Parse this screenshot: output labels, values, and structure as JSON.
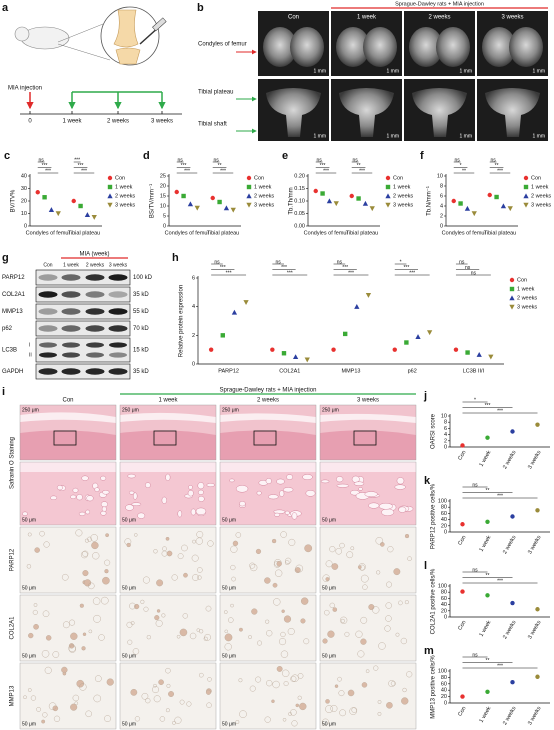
{
  "timeline": {
    "panel": "a",
    "event": "MIA injection",
    "ticks": [
      "0",
      "1 week",
      "2 weeks",
      "3 weeks"
    ]
  },
  "micro_ct": {
    "panel": "b",
    "columns": [
      "Con",
      "1 week",
      "2 weeks",
      "3 weeks"
    ],
    "treatment": "Sprague-Dawley rats + MIA injection",
    "rows": [
      "Condyles of femur",
      "Tibial plateau",
      "Tibial shaft"
    ],
    "scale": "1 mm"
  },
  "western_blot": {
    "panel": "g",
    "treatment": "MIA (week)",
    "lanes": [
      "Con",
      "1 week",
      "2 weeks",
      "3 weeks"
    ],
    "rows": [
      {
        "protein": "PARP12",
        "size": "100 kD"
      },
      {
        "protein": "COL2A1",
        "size": "35 kD"
      },
      {
        "protein": "MMP13",
        "size": "55 kD"
      },
      {
        "protein": "p62",
        "size": "70 kD"
      },
      {
        "protein": "LC3B",
        "size": "15 kD",
        "isoforms": [
          "I",
          "II"
        ]
      },
      {
        "protein": "GAPDH",
        "size": "35 kD"
      }
    ]
  },
  "histology": {
    "panel": "i",
    "columns": [
      "Con",
      "1 week",
      "2 weeks",
      "3 weeks"
    ],
    "treatment": "Sprague-Dawley rats + MIA injection",
    "rows": [
      "Safranin O Staining",
      "PARP12",
      "COL2A1",
      "MMP13"
    ],
    "scale_low": "250 μm",
    "scale_high": "50 μm"
  },
  "chart_data": [
    {
      "type": "dot",
      "panel": "c",
      "y_label": "BV/TV%",
      "categories": [
        "Condyles of femur",
        "Tibial plateau"
      ],
      "series": [
        {
          "name": "Con",
          "color": "#e8312f",
          "marker": "circle",
          "values": [
            27,
            20
          ]
        },
        {
          "name": "1 week",
          "color": "#3aaa35",
          "marker": "square",
          "values": [
            23,
            16
          ]
        },
        {
          "name": "2 weeks",
          "color": "#2b3fa0",
          "marker": "triangle",
          "values": [
            13,
            9
          ]
        },
        {
          "name": "3 weeks",
          "color": "#9a8b3a",
          "marker": "triangle-down",
          "values": [
            10,
            7
          ]
        }
      ],
      "ylim": [
        0,
        40
      ],
      "yticks": [
        0,
        10,
        20,
        30,
        40
      ],
      "legend": "right",
      "annotations": [
        "ns",
        "***",
        "***",
        "***",
        "***",
        "***"
      ]
    },
    {
      "type": "dot",
      "panel": "d",
      "y_label": "BS/TV/mm⁻¹",
      "categories": [
        "Condyles of femur",
        "Tibial plateau"
      ],
      "series": [
        {
          "name": "Con",
          "color": "#e8312f",
          "marker": "circle",
          "values": [
            17,
            14
          ]
        },
        {
          "name": "1 week",
          "color": "#3aaa35",
          "marker": "square",
          "values": [
            15,
            12
          ]
        },
        {
          "name": "2 weeks",
          "color": "#2b3fa0",
          "marker": "triangle",
          "values": [
            11,
            9
          ]
        },
        {
          "name": "3 weeks",
          "color": "#9a8b3a",
          "marker": "triangle-down",
          "values": [
            9,
            8
          ]
        }
      ],
      "ylim": [
        0,
        25
      ],
      "yticks": [
        0,
        5,
        10,
        15,
        20,
        25
      ],
      "legend": "right",
      "annotations": [
        "ns",
        "***",
        "***",
        "ns",
        "**",
        "***"
      ]
    },
    {
      "type": "dot",
      "panel": "e",
      "y_label": "Tb.Th/mm",
      "categories": [
        "Condyles of femur",
        "Tibial plateau"
      ],
      "series": [
        {
          "name": "Con",
          "color": "#e8312f",
          "marker": "circle",
          "values": [
            0.14,
            0.12
          ]
        },
        {
          "name": "1 week",
          "color": "#3aaa35",
          "marker": "square",
          "values": [
            0.13,
            0.11
          ]
        },
        {
          "name": "2 weeks",
          "color": "#2b3fa0",
          "marker": "triangle",
          "values": [
            0.1,
            0.09
          ]
        },
        {
          "name": "3 weeks",
          "color": "#9a8b3a",
          "marker": "triangle-down",
          "values": [
            0.09,
            0.07
          ]
        }
      ],
      "ylim": [
        0,
        0.2
      ],
      "yticks": [
        {
          "value": 0,
          "label": "0.00"
        },
        0.05,
        {
          "value": 0.1,
          "label": "0.10"
        },
        0.15,
        {
          "value": 0.2,
          "label": "0.20"
        }
      ],
      "legend": "right",
      "annotations": [
        "ns",
        "***",
        "***",
        "ns",
        "**",
        "***"
      ]
    },
    {
      "type": "dot",
      "panel": "f",
      "y_label": "Tb.N/mm⁻¹",
      "categories": [
        "Condyles of femur",
        "Tibial plateau"
      ],
      "series": [
        {
          "name": "Con",
          "color": "#e8312f",
          "marker": "circle",
          "values": [
            5,
            6.2
          ]
        },
        {
          "name": "1 week",
          "color": "#3aaa35",
          "marker": "square",
          "values": [
            4.5,
            5.8
          ]
        },
        {
          "name": "2 weeks",
          "color": "#2b3fa0",
          "marker": "triangle",
          "values": [
            3.5,
            4
          ]
        },
        {
          "name": "3 weeks",
          "color": "#9a8b3a",
          "marker": "triangle-down",
          "values": [
            2.5,
            3.5
          ]
        }
      ],
      "ylim": [
        0,
        10
      ],
      "yticks": [
        0,
        2,
        4,
        6,
        8,
        10
      ],
      "legend": "right",
      "annotations": [
        "ns",
        "*",
        "**",
        "ns",
        "**",
        "***"
      ]
    },
    {
      "type": "dot",
      "panel": "h",
      "y_label": "Relative protein expression",
      "categories": [
        "PARP12",
        "COL2A1",
        "MMP13",
        "p62",
        "LC3B II/I"
      ],
      "series": [
        {
          "name": "Con",
          "color": "#e8312f",
          "marker": "circle",
          "values": [
            1,
            1,
            1,
            1,
            1
          ]
        },
        {
          "name": "1 week",
          "color": "#3aaa35",
          "marker": "square",
          "values": [
            2,
            0.75,
            2.1,
            1.5,
            0.8
          ]
        },
        {
          "name": "2 weeks",
          "color": "#2b3fa0",
          "marker": "triangle",
          "values": [
            3.6,
            0.5,
            4,
            1.9,
            0.65
          ]
        },
        {
          "name": "3 weeks",
          "color": "#9a8b3a",
          "marker": "triangle-down",
          "values": [
            4.3,
            0.3,
            4.8,
            2.2,
            0.5
          ]
        }
      ],
      "ylim": [
        0,
        6
      ],
      "yticks": [
        0,
        2,
        4,
        6
      ],
      "legend": "right",
      "annotations": [
        "ns",
        "***",
        "***",
        "ns",
        "***",
        "***",
        "ns",
        "***",
        "***",
        "*",
        "***",
        "***",
        "ns",
        "ns",
        "ns"
      ]
    },
    {
      "type": "dot",
      "panel": "j",
      "y_label": "OARSI score",
      "categories": [
        "Con",
        "1 week",
        "2 weeks",
        "3 weeks"
      ],
      "values": [
        0.5,
        3,
        5,
        7.2
      ],
      "colors": [
        "#e8312f",
        "#3aaa35",
        "#2b3fa0",
        "#9a8b3a"
      ],
      "ylim": [
        0,
        10
      ],
      "yticks": [
        0,
        2,
        4,
        6,
        8,
        10
      ],
      "xtick_rotation": -60,
      "annotations": [
        "*",
        "***",
        "***"
      ]
    },
    {
      "type": "dot",
      "panel": "k",
      "y_label": "PARP12 positive cells/%",
      "categories": [
        "Con",
        "1 week",
        "2 weeks",
        "3 weeks"
      ],
      "values": [
        25,
        33,
        50,
        70
      ],
      "colors": [
        "#e8312f",
        "#3aaa35",
        "#2b3fa0",
        "#9a8b3a"
      ],
      "ylim": [
        0,
        100
      ],
      "yticks": [
        0,
        20,
        40,
        60,
        80,
        100
      ],
      "xtick_rotation": -60,
      "annotations": [
        "ns",
        "**",
        "***"
      ]
    },
    {
      "type": "dot",
      "panel": "l",
      "y_label": "COL2A1 positive cells/%",
      "categories": [
        "Con",
        "1 week",
        "2 weeks",
        "3 weeks"
      ],
      "values": [
        82,
        70,
        45,
        25
      ],
      "colors": [
        "#e8312f",
        "#3aaa35",
        "#2b3fa0",
        "#9a8b3a"
      ],
      "ylim": [
        0,
        100
      ],
      "yticks": [
        0,
        20,
        40,
        60,
        80,
        100
      ],
      "xtick_rotation": -60,
      "annotations": [
        "ns",
        "**",
        "***"
      ]
    },
    {
      "type": "dot",
      "panel": "m",
      "y_label": "MMP13 positive cells/%",
      "categories": [
        "Con",
        "1 week",
        "2 weeks",
        "3 weeks"
      ],
      "values": [
        20,
        35,
        65,
        82
      ],
      "colors": [
        "#e8312f",
        "#3aaa35",
        "#2b3fa0",
        "#9a8b3a"
      ],
      "ylim": [
        0,
        100
      ],
      "yticks": [
        0,
        20,
        40,
        60,
        80,
        100
      ],
      "xtick_rotation": -60,
      "annotations": [
        "ns",
        "**",
        "***"
      ]
    }
  ]
}
